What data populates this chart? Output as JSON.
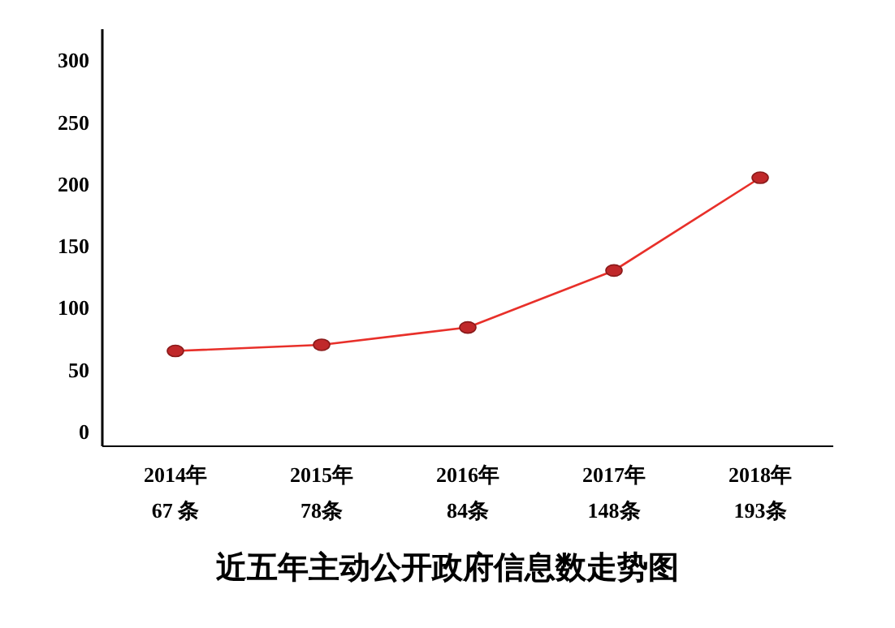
{
  "chart_data": {
    "type": "line",
    "title": "近五年主动公开政府信息数走势图",
    "categories": [
      "2014年\n67 条",
      "2015年\n78条",
      "2016年\n84条",
      "2017年\n148条",
      "2018年\n193条"
    ],
    "series": [
      {
        "color": "#e8302a",
        "values": [
          65,
          70,
          84,
          130,
          205
        ]
      }
    ],
    "ylim": [
      -12,
      325
    ],
    "yticks": [
      0,
      50,
      100,
      150,
      200,
      250,
      300
    ],
    "marker": "circle",
    "line_style": "solid"
  }
}
